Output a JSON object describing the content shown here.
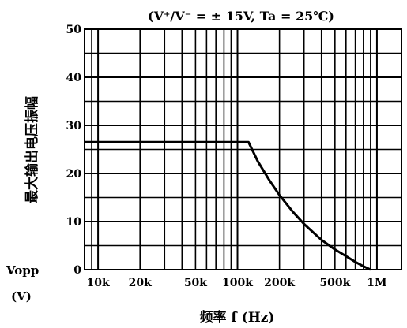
{
  "chart_data": {
    "type": "line",
    "title": "(V⁺/V⁻ = ± 15V,  Ta = 25℃)",
    "ylabel": "最大输出电压振幅",
    "ylabel_symbol": "Vopp",
    "ylabel_unit": "(V)",
    "xlabel": "频率 f (Hz)",
    "x_scale": "log",
    "xlim": [
      8000,
      1500000
    ],
    "ylim": [
      0,
      50
    ],
    "x_ticks": [
      {
        "value": 10000,
        "label": "10k"
      },
      {
        "value": 20000,
        "label": "20k"
      },
      {
        "value": 50000,
        "label": "50k"
      },
      {
        "value": 100000,
        "label": "100k"
      },
      {
        "value": 200000,
        "label": "200k"
      },
      {
        "value": 500000,
        "label": "500k"
      },
      {
        "value": 1000000,
        "label": "1M"
      }
    ],
    "y_ticks": [
      0,
      10,
      20,
      30,
      40,
      50
    ],
    "grid": true,
    "series": [
      {
        "x": [
          8000,
          10000,
          20000,
          50000,
          100000,
          120000,
          140000,
          170000,
          200000,
          250000,
          300000,
          400000,
          500000,
          600000,
          700000,
          800000,
          900000
        ],
        "y": [
          26.5,
          26.5,
          26.5,
          26.5,
          26.5,
          26.5,
          22.5,
          18.5,
          15.5,
          12,
          9.5,
          6.2,
          4.2,
          2.8,
          1.6,
          0.7,
          0
        ]
      }
    ]
  }
}
